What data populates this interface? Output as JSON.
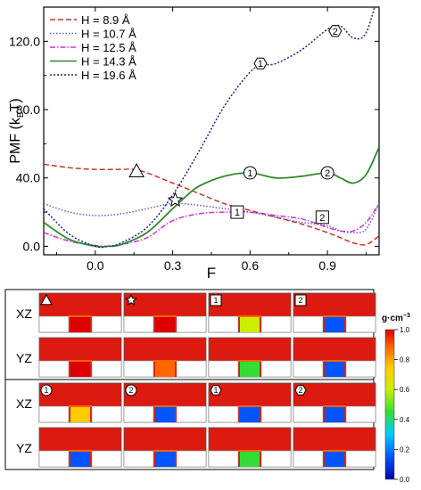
{
  "chart_data": {
    "type": "line",
    "xlabel": "F",
    "ylabel_main": "PMF (k",
    "ylabel_sub": "B",
    "ylabel_end": "T)",
    "xlim": [
      -0.2,
      1.1
    ],
    "ylim": [
      -5,
      140
    ],
    "xticks": [
      0.0,
      0.3,
      0.6,
      0.9
    ],
    "xtick_labels": [
      "0.0",
      "0.3",
      "0.6",
      "0.9"
    ],
    "yticks": [
      0,
      40,
      80,
      120
    ],
    "ytick_labels": [
      "0.0",
      "40.0",
      "80.0",
      "120.0"
    ],
    "legend_position": "top-left",
    "series": [
      {
        "name": "H = 8.9 Å",
        "color": "#c0392b",
        "dash": "6,3",
        "x": [
          -0.2,
          -0.1,
          0.0,
          0.1,
          0.15,
          0.2,
          0.3,
          0.4,
          0.5,
          0.6,
          0.7,
          0.8,
          0.9,
          0.95,
          1.0,
          1.05,
          1.1
        ],
        "y": [
          48,
          46,
          45,
          45,
          45,
          43,
          37,
          31,
          25,
          21,
          17,
          13,
          8,
          5,
          2,
          1,
          6
        ]
      },
      {
        "name": "H = 10.7 Å",
        "color": "#6a5acd",
        "dash": "1.5,2",
        "x": [
          -0.2,
          -0.1,
          0.0,
          0.1,
          0.2,
          0.3,
          0.4,
          0.5,
          0.6,
          0.7,
          0.8,
          0.9,
          0.95,
          1.0,
          1.05,
          1.1
        ],
        "y": [
          25,
          20,
          18,
          19,
          22,
          25,
          24,
          22,
          20,
          17,
          14,
          12,
          9,
          8,
          10,
          25
        ]
      },
      {
        "name": "H = 12.5 Å",
        "color": "#cc33cc",
        "dash": "6,2,1.5,2",
        "x": [
          -0.2,
          -0.1,
          0.0,
          0.05,
          0.1,
          0.2,
          0.3,
          0.4,
          0.5,
          0.6,
          0.7,
          0.8,
          0.9,
          0.95,
          1.0,
          1.05,
          1.1
        ],
        "y": [
          8,
          3,
          0.5,
          0,
          1,
          5,
          15,
          19,
          20,
          20,
          18,
          16,
          11,
          9,
          9,
          14,
          25
        ]
      },
      {
        "name": "H = 14.3 Å",
        "color": "#2e8b2e",
        "dash": "",
        "x": [
          -0.2,
          -0.1,
          0.0,
          0.05,
          0.1,
          0.2,
          0.3,
          0.35,
          0.4,
          0.5,
          0.6,
          0.7,
          0.8,
          0.9,
          0.95,
          1.0,
          1.05,
          1.1
        ],
        "y": [
          14,
          4,
          0,
          0,
          1,
          8,
          22,
          29,
          35,
          41,
          43,
          40,
          41,
          43,
          40,
          37,
          42,
          58
        ]
      },
      {
        "name": "H = 19.6 Å",
        "color": "#1a237e",
        "dash": "2,2",
        "x": [
          -0.2,
          -0.1,
          0.0,
          0.05,
          0.1,
          0.2,
          0.3,
          0.4,
          0.5,
          0.6,
          0.65,
          0.7,
          0.8,
          0.9,
          0.95,
          1.0,
          1.05,
          1.1
        ],
        "y": [
          22,
          7,
          0,
          0,
          2,
          11,
          30,
          55,
          82,
          102,
          106,
          107,
          115,
          127,
          129,
          122,
          125,
          150
        ]
      }
    ],
    "annotations": [
      {
        "symbol": "triangle",
        "x": 0.16,
        "y": 44
      },
      {
        "symbol": "star",
        "x": 0.31,
        "y": 27
      },
      {
        "symbol": "circle",
        "label": "1",
        "x": 0.6,
        "y": 43,
        "series": "H = 14.3 Å"
      },
      {
        "symbol": "circle",
        "label": "2",
        "x": 0.9,
        "y": 43,
        "series": "H = 14.3 Å"
      },
      {
        "symbol": "square",
        "label": "1",
        "x": 0.55,
        "y": 20,
        "series": "H = 12.5 Å"
      },
      {
        "symbol": "square",
        "label": "2",
        "x": 0.88,
        "y": 17,
        "series": "H = 12.5 Å"
      },
      {
        "symbol": "hexagon",
        "label": "1",
        "x": 0.64,
        "y": 107,
        "series": "H = 19.6 Å"
      },
      {
        "symbol": "hexagon",
        "label": "2",
        "x": 0.93,
        "y": 126,
        "series": "H = 19.6 Å"
      }
    ]
  },
  "density_panel": {
    "colorbar_unit_main": "g·cm",
    "colorbar_unit_sup": "−3",
    "colorbar_ticks": [
      "0.0",
      "0.2",
      "0.4",
      "0.6",
      "0.8",
      "1.0"
    ],
    "colorbar_colors": [
      "#0000aa",
      "#0055ff",
      "#00ccff",
      "#33dd33",
      "#ccee00",
      "#ffcc00",
      "#ff6600",
      "#dd0000"
    ],
    "groups": [
      {
        "rows": [
          {
            "label": "XZ",
            "cells": [
              {
                "marker": "triangle",
                "marker_label": "",
                "plug": 1.0
              },
              {
                "marker": "star",
                "marker_label": "",
                "plug": 1.0
              },
              {
                "marker": "square",
                "marker_label": "1",
                "plug": 0.55
              },
              {
                "marker": "square",
                "marker_label": "2",
                "plug": 0.2
              }
            ]
          },
          {
            "label": "YZ",
            "cells": [
              {
                "marker": "",
                "marker_label": "",
                "plug": 0.95
              },
              {
                "marker": "",
                "marker_label": "",
                "plug": 0.85
              },
              {
                "marker": "",
                "marker_label": "",
                "plug": 0.4
              },
              {
                "marker": "",
                "marker_label": "",
                "plug": 0.15
              }
            ]
          }
        ]
      },
      {
        "rows": [
          {
            "label": "XZ",
            "cells": [
              {
                "marker": "circle",
                "marker_label": "1",
                "plug": 0.7
              },
              {
                "marker": "circle",
                "marker_label": "2",
                "plug": 0.2
              },
              {
                "marker": "hexagon",
                "marker_label": "1",
                "plug": 0.15
              },
              {
                "marker": "hexagon",
                "marker_label": "2",
                "plug": 0.15
              }
            ]
          },
          {
            "label": "YZ",
            "cells": [
              {
                "marker": "",
                "marker_label": "",
                "plug": 0.1
              },
              {
                "marker": "",
                "marker_label": "",
                "plug": 0.1
              },
              {
                "marker": "",
                "marker_label": "",
                "plug": 0.45
              },
              {
                "marker": "",
                "marker_label": "",
                "plug": 0.1
              }
            ]
          }
        ]
      }
    ]
  }
}
